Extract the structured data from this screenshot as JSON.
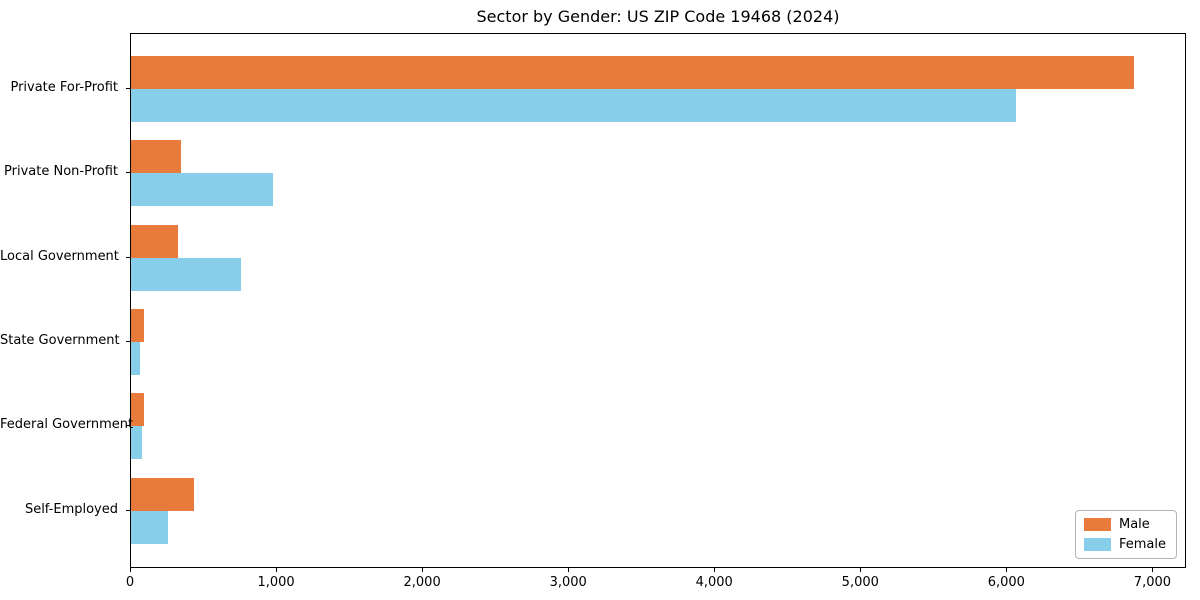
{
  "title": "Sector by Gender: US ZIP Code 19468 (2024)",
  "colors": {
    "male": "#E87A3C",
    "female": "#87CEEB",
    "axis": "#000000",
    "text": "#000000",
    "legend_border": "#b4b4b4",
    "background": "#ffffff"
  },
  "legend": {
    "position": "lower right",
    "items": [
      {
        "label": "Male",
        "color": "#E87A3C"
      },
      {
        "label": "Female",
        "color": "#87CEEB"
      }
    ]
  },
  "chart_data": {
    "type": "bar",
    "orientation": "horizontal",
    "title": "Sector by Gender: US ZIP Code 19468 (2024)",
    "xlabel": "",
    "ylabel": "",
    "categories": [
      "Private For-Profit",
      "Private Non-Profit",
      "Local Government",
      "State Government",
      "Federal Government",
      "Self-Employed"
    ],
    "series": [
      {
        "name": "Male",
        "color": "#E87A3C",
        "values": [
          6880,
          340,
          320,
          90,
          87,
          430
        ]
      },
      {
        "name": "Female",
        "color": "#87CEEB",
        "values": [
          6070,
          975,
          755,
          64,
          73,
          255
        ]
      }
    ],
    "xlim": [
      0,
      7230
    ],
    "xticks": [
      0,
      1000,
      2000,
      3000,
      4000,
      5000,
      6000,
      7000
    ],
    "xtick_labels": [
      "0",
      "1,000",
      "2,000",
      "3,000",
      "4,000",
      "5,000",
      "6,000",
      "7,000"
    ],
    "grid": false,
    "legend_position": "lower right"
  }
}
